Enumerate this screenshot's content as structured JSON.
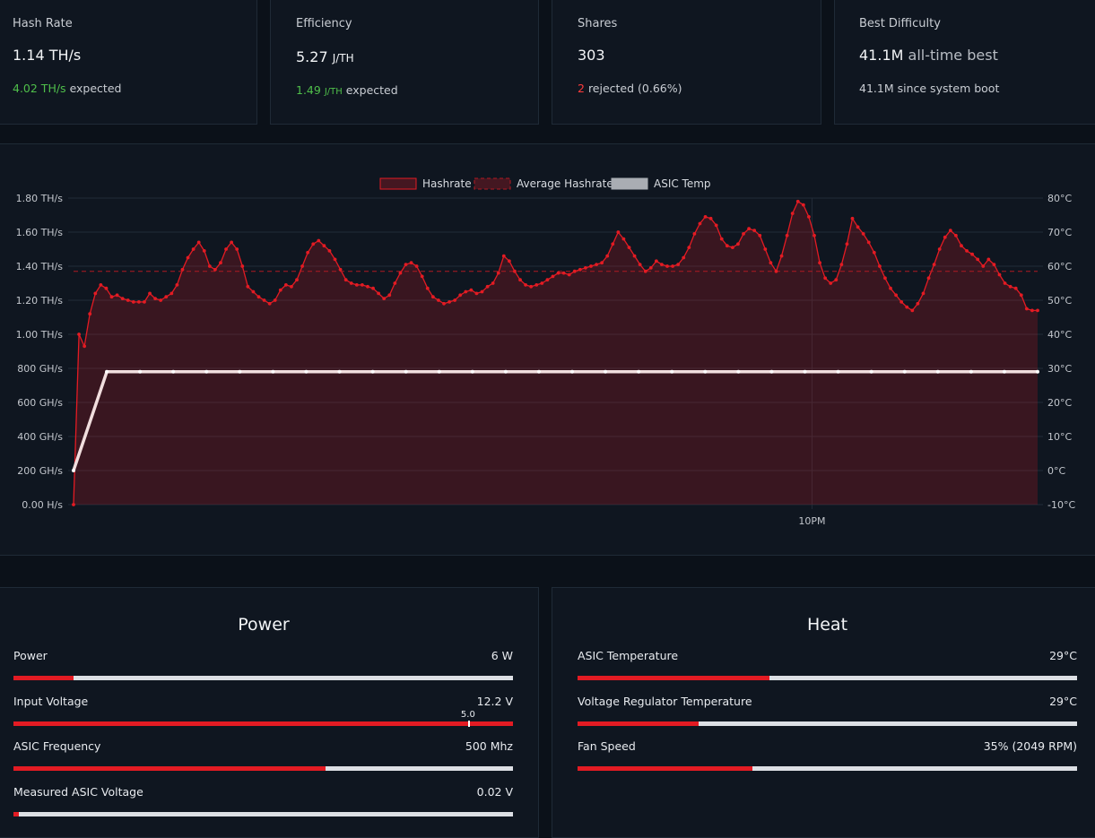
{
  "stats": {
    "hashrate": {
      "title": "Hash Rate",
      "value": "1.14 TH/s",
      "expected_value": "4.02 TH/s",
      "expected_label": "expected"
    },
    "efficiency": {
      "title": "Efficiency",
      "value": "5.27",
      "unit": "J/TH",
      "expected_value": "1.49",
      "expected_unit": "J/TH",
      "expected_label": "expected"
    },
    "shares": {
      "title": "Shares",
      "value": "303",
      "rejected_count": "2",
      "rejected_label": "rejected",
      "rejected_pct": "(0.66%)"
    },
    "best_difficulty": {
      "title": "Best Difficulty",
      "value": "41.1M",
      "value_suffix": "all-time best",
      "boot_value": "41.1M",
      "boot_label": "since system boot"
    }
  },
  "chart_data": {
    "type": "line",
    "legend": [
      "Hashrate",
      "Average Hashrate",
      "ASIC Temp"
    ],
    "y_left": {
      "unit": "GH/s",
      "ylim": [
        0,
        1800
      ],
      "ticks": [
        "0.00 H/s",
        "200 GH/s",
        "400 GH/s",
        "600 GH/s",
        "800 GH/s",
        "1.00 TH/s",
        "1.20 TH/s",
        "1.40 TH/s",
        "1.60 TH/s",
        "1.80 TH/s"
      ]
    },
    "y_right": {
      "unit": "°C",
      "ylim": [
        -10,
        80
      ],
      "ticks": [
        "-10°C",
        "0°C",
        "10°C",
        "20°C",
        "30°C",
        "40°C",
        "50°C",
        "60°C",
        "70°C",
        "80°C"
      ]
    },
    "x_tick_label": "10PM",
    "x_tick_fraction": 0.766,
    "average_hashrate": 1370,
    "series": [
      {
        "name": "Hashrate",
        "color": "#e31b23",
        "values": [
          0,
          1000,
          930,
          1120,
          1240,
          1290,
          1270,
          1220,
          1230,
          1210,
          1200,
          1190,
          1190,
          1190,
          1240,
          1210,
          1200,
          1220,
          1240,
          1290,
          1380,
          1450,
          1500,
          1540,
          1490,
          1400,
          1380,
          1420,
          1500,
          1540,
          1500,
          1400,
          1280,
          1250,
          1220,
          1200,
          1180,
          1200,
          1260,
          1290,
          1280,
          1320,
          1400,
          1480,
          1530,
          1550,
          1520,
          1490,
          1440,
          1380,
          1320,
          1300,
          1290,
          1290,
          1280,
          1270,
          1240,
          1210,
          1230,
          1300,
          1360,
          1410,
          1420,
          1400,
          1340,
          1270,
          1220,
          1200,
          1180,
          1190,
          1200,
          1230,
          1250,
          1260,
          1240,
          1250,
          1280,
          1300,
          1360,
          1460,
          1430,
          1370,
          1320,
          1290,
          1280,
          1290,
          1300,
          1320,
          1340,
          1360,
          1360,
          1350,
          1370,
          1380,
          1390,
          1400,
          1410,
          1420,
          1460,
          1530,
          1600,
          1560,
          1510,
          1460,
          1410,
          1370,
          1390,
          1430,
          1410,
          1400,
          1400,
          1410,
          1450,
          1510,
          1590,
          1650,
          1690,
          1680,
          1640,
          1560,
          1520,
          1510,
          1530,
          1590,
          1620,
          1610,
          1580,
          1500,
          1420,
          1370,
          1460,
          1580,
          1710,
          1780,
          1760,
          1690,
          1580,
          1420,
          1330,
          1300,
          1320,
          1410,
          1530,
          1680,
          1630,
          1590,
          1540,
          1480,
          1400,
          1330,
          1270,
          1230,
          1190,
          1160,
          1140,
          1180,
          1240,
          1330,
          1410,
          1500,
          1570,
          1610,
          1580,
          1520,
          1490,
          1470,
          1440,
          1400,
          1440,
          1410,
          1350,
          1300,
          1280,
          1270,
          1230,
          1150,
          1140,
          1140
        ]
      },
      {
        "name": "ASIC Temp",
        "color": "#ffffff",
        "values": [
          0,
          29,
          29,
          29,
          29,
          29,
          29,
          29,
          29,
          29,
          29,
          29,
          29,
          29,
          29,
          29,
          29,
          29,
          29,
          29,
          29,
          29,
          29,
          29,
          29,
          29,
          29,
          29,
          29,
          29
        ]
      }
    ]
  },
  "power": {
    "title": "Power",
    "rows": [
      {
        "label": "Power",
        "value": "6 W",
        "fill": 12
      },
      {
        "label": "Input Voltage",
        "value": "12.2 V",
        "fill": 100,
        "marker_label": "5.0",
        "marker_pos": 91
      },
      {
        "label": "ASIC Frequency",
        "value": "500 Mhz",
        "fill": 62.5
      },
      {
        "label": "Measured ASIC Voltage",
        "value": "0.02 V",
        "fill": 1
      }
    ]
  },
  "heat": {
    "title": "Heat",
    "rows": [
      {
        "label": "ASIC Temperature",
        "value": "29°C",
        "fill": 38.5
      },
      {
        "label": "Voltage Regulator Temperature",
        "value": "29°C",
        "fill": 24.2
      },
      {
        "label": "Fan Speed",
        "value": "35% (2049 RPM)",
        "fill": 35
      }
    ]
  },
  "colors": {
    "accent": "#e31b23",
    "background": "#0b1119",
    "panel": "#0f1620",
    "good": "#4fbf4a"
  }
}
